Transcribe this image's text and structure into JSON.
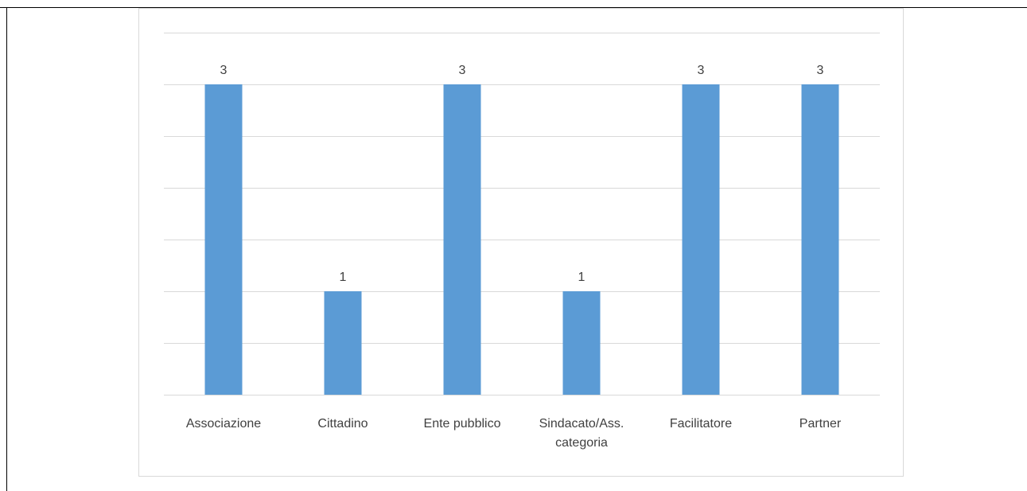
{
  "chart_data": {
    "type": "bar",
    "categories": [
      [
        "Associazione"
      ],
      [
        "Cittadino"
      ],
      [
        "Ente pubblico"
      ],
      [
        "Sindacato/Ass.",
        "categoria"
      ],
      [
        "Facilitatore"
      ],
      [
        "Partner"
      ]
    ],
    "values": [
      3,
      1,
      3,
      1,
      3,
      3
    ],
    "data_labels": [
      "3",
      "1",
      "3",
      "1",
      "3",
      "3"
    ],
    "ylim": [
      0,
      3.5
    ],
    "gridline_step": 0.5,
    "grid": true,
    "legend": "none",
    "title": "",
    "xlabel": "",
    "ylabel": "",
    "colors": {
      "bar": "#5b9bd5",
      "grid": "#d9d9d9",
      "text": "#404040",
      "frame": "#d9d9d9"
    }
  }
}
